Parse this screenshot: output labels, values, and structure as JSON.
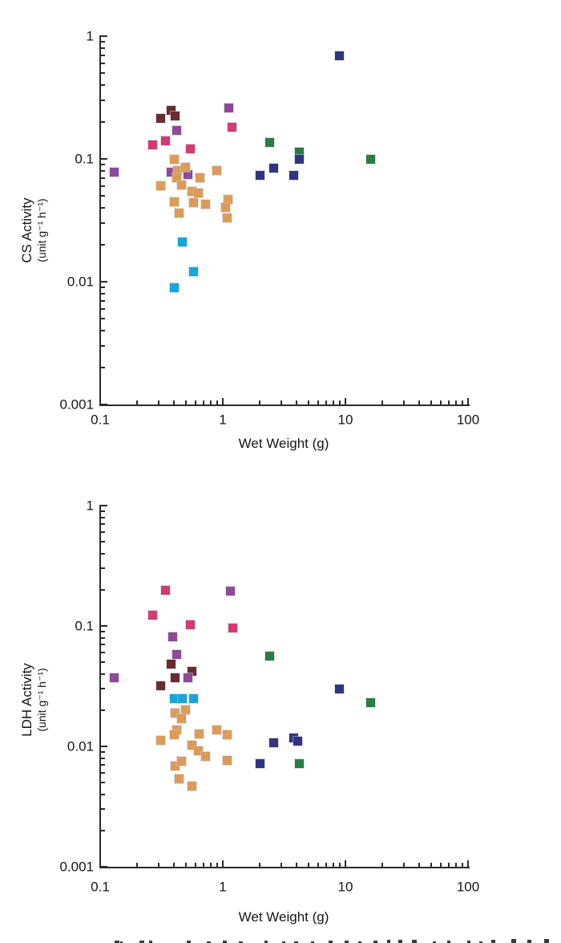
{
  "figure": {
    "background": "#FFFFFF",
    "axis_color": "#2B2B2B"
  },
  "palette": {
    "pink": "#D23B73",
    "maroon": "#6A2B2F",
    "purple": "#8E4A99",
    "green": "#2B7C44",
    "navy": "#303580",
    "cyan": "#16A5DC",
    "orange": "#DC9B58"
  },
  "chart_data": [
    {
      "type": "scatter",
      "title": "",
      "xlabel": "Wet Weight (g)",
      "ylabel": "CS Activity",
      "ylabel_units": "(unit g⁻¹ h⁻¹)",
      "xscale": "log",
      "yscale": "log",
      "xlim": [
        0.1,
        100
      ],
      "ylim": [
        0.001,
        1
      ],
      "x_major_ticks": [
        0.1,
        1,
        10,
        100
      ],
      "x_tick_labels": [
        "0.1",
        "1",
        "10",
        "100"
      ],
      "y_major_ticks": [
        1,
        0.1,
        0.01,
        0.001
      ],
      "y_tick_labels": [
        "1",
        "0.1",
        "0.01",
        "0.001"
      ],
      "grid": false,
      "legend": "none",
      "marker": "square",
      "series": [
        {
          "name": "pink",
          "color": "#D23B73",
          "points": [
            [
              0.34,
              0.14
            ],
            [
              0.27,
              0.13
            ],
            [
              0.54,
              0.12
            ],
            [
              1.19,
              0.18
            ]
          ]
        },
        {
          "name": "maroon",
          "color": "#6A2B2F",
          "points": [
            [
              0.31,
              0.215
            ],
            [
              0.38,
              0.25
            ],
            [
              0.41,
              0.225
            ]
          ]
        },
        {
          "name": "purple",
          "color": "#8E4A99",
          "points": [
            [
              0.13,
              0.078
            ],
            [
              0.42,
              0.17
            ],
            [
              1.12,
              0.26
            ],
            [
              0.38,
              0.078
            ],
            [
              0.52,
              0.075
            ]
          ]
        },
        {
          "name": "green",
          "color": "#2B7C44",
          "points": [
            [
              2.4,
              0.137
            ],
            [
              4.2,
              0.113
            ],
            [
              16,
              0.1
            ]
          ]
        },
        {
          "name": "navy",
          "color": "#303580",
          "points": [
            [
              9,
              0.69
            ],
            [
              2.0,
              0.074
            ],
            [
              2.6,
              0.084
            ],
            [
              3.8,
              0.074
            ],
            [
              4.2,
              0.1
            ]
          ]
        },
        {
          "name": "cyan",
          "color": "#16A5DC",
          "points": [
            [
              0.47,
              0.021
            ],
            [
              0.58,
              0.012
            ],
            [
              0.4,
              0.009
            ]
          ]
        },
        {
          "name": "orange",
          "color": "#DC9B58",
          "points": [
            [
              0.4,
              0.1
            ],
            [
              0.43,
              0.081
            ],
            [
              0.5,
              0.085
            ],
            [
              0.89,
              0.08
            ],
            [
              0.42,
              0.07
            ],
            [
              0.65,
              0.07
            ],
            [
              0.31,
              0.06
            ],
            [
              0.46,
              0.061
            ],
            [
              0.56,
              0.054
            ],
            [
              0.63,
              0.053
            ],
            [
              0.4,
              0.045
            ],
            [
              0.58,
              0.044
            ],
            [
              0.72,
              0.043
            ],
            [
              1.11,
              0.047
            ],
            [
              1.05,
              0.04
            ],
            [
              0.44,
              0.036
            ],
            [
              1.08,
              0.033
            ]
          ]
        }
      ]
    },
    {
      "type": "scatter",
      "title": "",
      "xlabel": "Wet Weight (g)",
      "ylabel": "LDH Activity",
      "ylabel_units": "(unit g⁻¹ h⁻¹)",
      "xscale": "log",
      "yscale": "log",
      "xlim": [
        0.1,
        100
      ],
      "ylim": [
        0.001,
        1
      ],
      "x_major_ticks": [
        0.1,
        1,
        10,
        100
      ],
      "x_tick_labels": [
        "0.1",
        "1",
        "10",
        "100"
      ],
      "y_major_ticks": [
        1,
        0.1,
        0.01,
        0.001
      ],
      "y_tick_labels": [
        "1",
        "0.1",
        "0.01",
        "0.001"
      ],
      "grid": false,
      "legend": "none",
      "marker": "square",
      "series": [
        {
          "name": "pink",
          "color": "#D23B73",
          "points": [
            [
              0.34,
              0.198
            ],
            [
              0.27,
              0.123
            ],
            [
              0.54,
              0.103
            ],
            [
              1.2,
              0.096
            ]
          ]
        },
        {
          "name": "maroon",
          "color": "#6A2B2F",
          "points": [
            [
              0.38,
              0.048
            ],
            [
              0.56,
              0.042
            ],
            [
              0.41,
              0.037
            ],
            [
              0.31,
              0.032
            ]
          ]
        },
        {
          "name": "purple",
          "color": "#8E4A99",
          "points": [
            [
              0.13,
              0.037
            ],
            [
              1.15,
              0.195
            ],
            [
              0.39,
              0.081
            ],
            [
              0.42,
              0.058
            ],
            [
              0.52,
              0.037
            ]
          ]
        },
        {
          "name": "green",
          "color": "#2B7C44",
          "points": [
            [
              2.4,
              0.056
            ],
            [
              16,
              0.023
            ],
            [
              4.2,
              0.0072
            ]
          ]
        },
        {
          "name": "navy",
          "color": "#303580",
          "points": [
            [
              9,
              0.03
            ],
            [
              2.6,
              0.0107
            ],
            [
              3.8,
              0.0117
            ],
            [
              4.1,
              0.011
            ],
            [
              2.0,
              0.0072
            ]
          ]
        },
        {
          "name": "cyan",
          "color": "#16A5DC",
          "points": [
            [
              0.4,
              0.025
            ],
            [
              0.47,
              0.025
            ],
            [
              0.58,
              0.025
            ]
          ]
        },
        {
          "name": "orange",
          "color": "#DC9B58",
          "points": [
            [
              0.41,
              0.019
            ],
            [
              0.5,
              0.02
            ],
            [
              0.46,
              0.017
            ],
            [
              0.42,
              0.0136
            ],
            [
              0.4,
              0.0124
            ],
            [
              0.64,
              0.0126
            ],
            [
              0.89,
              0.0137
            ],
            [
              1.08,
              0.0124
            ],
            [
              0.31,
              0.0112
            ],
            [
              0.56,
              0.0102
            ],
            [
              0.63,
              0.0092
            ],
            [
              0.72,
              0.0082
            ],
            [
              1.09,
              0.0077
            ],
            [
              0.41,
              0.0069
            ],
            [
              0.46,
              0.0075
            ],
            [
              0.44,
              0.0054
            ],
            [
              0.56,
              0.0047
            ]
          ]
        }
      ]
    }
  ],
  "clipped_text_marks": [
    [
      143,
      6,
      3
    ],
    [
      150,
      3,
      2
    ],
    [
      174,
      6,
      3
    ],
    [
      186,
      4,
      3
    ],
    [
      233,
      5,
      3
    ],
    [
      258,
      5,
      2
    ],
    [
      278,
      5,
      3
    ],
    [
      298,
      5,
      2
    ],
    [
      330,
      4,
      3
    ],
    [
      352,
      4,
      2
    ],
    [
      367,
      5,
      2
    ],
    [
      388,
      4,
      2
    ],
    [
      410,
      5,
      3
    ],
    [
      430,
      5,
      3
    ],
    [
      447,
      4,
      2
    ],
    [
      466,
      5,
      3
    ],
    [
      483,
      4,
      4
    ],
    [
      497,
      5,
      4
    ],
    [
      514,
      6,
      4
    ],
    [
      540,
      4,
      2
    ],
    [
      558,
      4,
      3
    ],
    [
      583,
      4,
      3
    ],
    [
      598,
      4,
      2
    ],
    [
      613,
      5,
      4
    ],
    [
      638,
      6,
      5
    ],
    [
      658,
      5,
      4
    ],
    [
      679,
      6,
      5
    ]
  ]
}
